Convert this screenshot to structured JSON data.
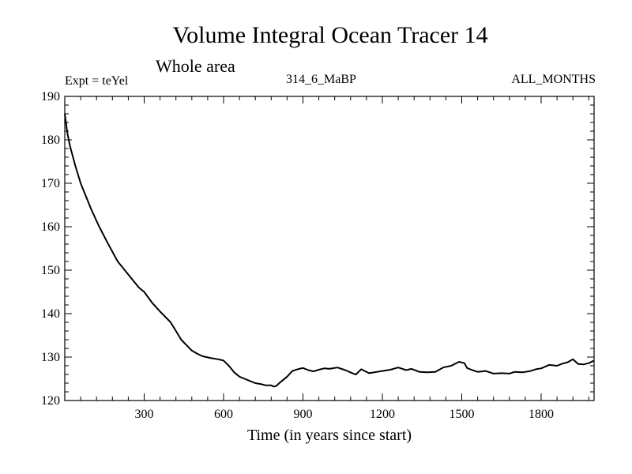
{
  "chart_data": {
    "type": "line",
    "title": "Volume Integral Ocean Tracer 14",
    "subtitle": "Whole area",
    "annotations": {
      "experiment": "Expt = teYel",
      "case": "314_6_MaBP",
      "months": "ALL_MONTHS"
    },
    "xlabel": "Time (in years since start)",
    "ylabel": "",
    "xlim": [
      0,
      2000
    ],
    "ylim": [
      120,
      190
    ],
    "xticks": [
      300,
      600,
      900,
      1200,
      1500,
      1800
    ],
    "yticks": [
      120,
      130,
      140,
      150,
      160,
      170,
      180,
      190
    ],
    "grid": false,
    "series": [
      {
        "name": "Ocean Tracer 14",
        "x": [
          0,
          10,
          20,
          40,
          60,
          80,
          100,
          130,
          160,
          200,
          240,
          280,
          300,
          330,
          360,
          400,
          440,
          480,
          500,
          520,
          550,
          580,
          600,
          620,
          640,
          660,
          680,
          700,
          720,
          740,
          760,
          780,
          790,
          800,
          810,
          820,
          840,
          860,
          880,
          900,
          920,
          940,
          960,
          980,
          1000,
          1030,
          1060,
          1090,
          1100,
          1120,
          1150,
          1180,
          1200,
          1230,
          1260,
          1290,
          1310,
          1340,
          1370,
          1400,
          1430,
          1460,
          1490,
          1510,
          1520,
          1540,
          1560,
          1590,
          1620,
          1650,
          1680,
          1700,
          1730,
          1760,
          1780,
          1800,
          1830,
          1860,
          1880,
          1900,
          1920,
          1940,
          1960,
          1980,
          2000
        ],
        "y": [
          186,
          181.5,
          178.5,
          174,
          170,
          167,
          164,
          160,
          156.5,
          152,
          149,
          146,
          145,
          142.5,
          140.5,
          138,
          134,
          131.5,
          130.8,
          130.2,
          129.8,
          129.5,
          129.2,
          128,
          126.5,
          125.5,
          125,
          124.5,
          124,
          123.8,
          123.5,
          123.5,
          123.2,
          123.4,
          124,
          124.5,
          125.5,
          126.8,
          127.2,
          127.5,
          127,
          126.7,
          127.1,
          127.4,
          127.3,
          127.6,
          127,
          126.2,
          126,
          127.2,
          126.3,
          126.6,
          126.8,
          127.1,
          127.6,
          127,
          127.3,
          126.6,
          126.5,
          126.6,
          127.6,
          128,
          128.9,
          128.6,
          127.5,
          127,
          126.6,
          126.8,
          126.2,
          126.3,
          126.2,
          126.6,
          126.5,
          126.8,
          127.2,
          127.4,
          128.2,
          128,
          128.5,
          128.8,
          129.5,
          128.4,
          128.3,
          128.6,
          129.2
        ]
      }
    ]
  },
  "colors": {
    "line": "#000000",
    "axis": "#000000",
    "background": "#ffffff"
  }
}
